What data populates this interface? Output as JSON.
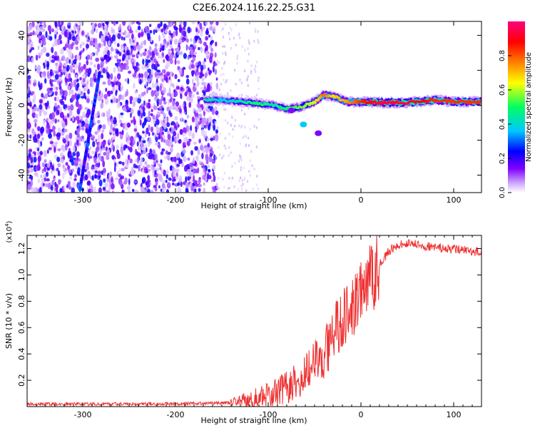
{
  "title": "C2E6.2024.116.22.25.G31",
  "chart_data": [
    {
      "type": "heatmap",
      "xlabel": "Height of straight line (km)",
      "ylabel": "Frequency (Hz)",
      "xlim": [
        -360,
        130
      ],
      "ylim": [
        -50,
        48
      ],
      "x_ticks": [
        -300,
        -200,
        -100,
        0,
        100
      ],
      "y_ticks": [
        -40,
        -20,
        0,
        20,
        40
      ],
      "colorbar": {
        "label": "Normalized spectral amplitude",
        "range": [
          0,
          1
        ],
        "ticks": [
          "0.0",
          "0.2",
          "0.4",
          "0.6",
          "0.8"
        ],
        "colormap": [
          "#ffffff",
          "#c8a0ff",
          "#8000ff",
          "#0000ff",
          "#00c8ff",
          "#00ff60",
          "#ffff00",
          "#ff8000",
          "#ff0000",
          "#ff0080"
        ]
      },
      "noise_region": {
        "x": [
          -360,
          -155
        ],
        "y": [
          -50,
          48
        ],
        "level": 0.35
      },
      "diagonal_streak": {
        "x": [
          -303,
          -282
        ],
        "y": [
          -48,
          18
        ]
      },
      "ridge": [
        {
          "x": -165,
          "y": 3,
          "amp": 0.5
        },
        {
          "x": -150,
          "y": 3,
          "amp": 0.45
        },
        {
          "x": -130,
          "y": 2,
          "amp": 0.5
        },
        {
          "x": -110,
          "y": 1,
          "amp": 0.55
        },
        {
          "x": -95,
          "y": 0,
          "amp": 0.5
        },
        {
          "x": -80,
          "y": -2,
          "amp": 0.55
        },
        {
          "x": -65,
          "y": -1,
          "amp": 0.6
        },
        {
          "x": -50,
          "y": 2,
          "amp": 0.65
        },
        {
          "x": -40,
          "y": 6,
          "amp": 0.8
        },
        {
          "x": -30,
          "y": 5,
          "amp": 0.7
        },
        {
          "x": -15,
          "y": 2,
          "amp": 0.75
        },
        {
          "x": 0,
          "y": 2,
          "amp": 0.85
        },
        {
          "x": 20,
          "y": 1.5,
          "amp": 0.95
        },
        {
          "x": 50,
          "y": 1.5,
          "amp": 0.95
        },
        {
          "x": 80,
          "y": 3,
          "amp": 0.85
        },
        {
          "x": 100,
          "y": 2,
          "amp": 0.85
        },
        {
          "x": 130,
          "y": 2,
          "amp": 0.85
        }
      ],
      "branch": [
        {
          "x": -75,
          "y": -3
        },
        {
          "x": -62,
          "y": -11
        },
        {
          "x": -46,
          "y": -16
        }
      ]
    },
    {
      "type": "line",
      "xlabel": "Height of straight line (km)",
      "ylabel": "SNR (10 * v/v)",
      "yscale_label": "(x10",
      "yscale_exp": "4",
      "yscale_close": ")",
      "color": "#ee3030",
      "xlim": [
        -360,
        130
      ],
      "ylim": [
        0,
        1.3
      ],
      "x_ticks": [
        -300,
        -200,
        -100,
        0,
        100
      ],
      "y_ticks": [
        "0.2",
        "0.4",
        "0.6",
        "0.8",
        "1.0",
        "1.2"
      ],
      "series": [
        {
          "values": [
            [
              -360,
              0.02
            ],
            [
              -200,
              0.02
            ],
            [
              -140,
              0.03
            ],
            [
              -120,
              0.06
            ],
            [
              -100,
              0.09
            ],
            [
              -80,
              0.15
            ],
            [
              -60,
              0.25
            ],
            [
              -40,
              0.4
            ],
            [
              -30,
              0.55
            ],
            [
              -20,
              0.65
            ],
            [
              -10,
              0.75
            ],
            [
              0,
              0.85
            ],
            [
              10,
              0.95
            ],
            [
              20,
              1.08
            ],
            [
              30,
              1.18
            ],
            [
              40,
              1.23
            ],
            [
              50,
              1.24
            ],
            [
              70,
              1.22
            ],
            [
              90,
              1.2
            ],
            [
              110,
              1.19
            ],
            [
              130,
              1.17
            ]
          ]
        }
      ]
    }
  ]
}
